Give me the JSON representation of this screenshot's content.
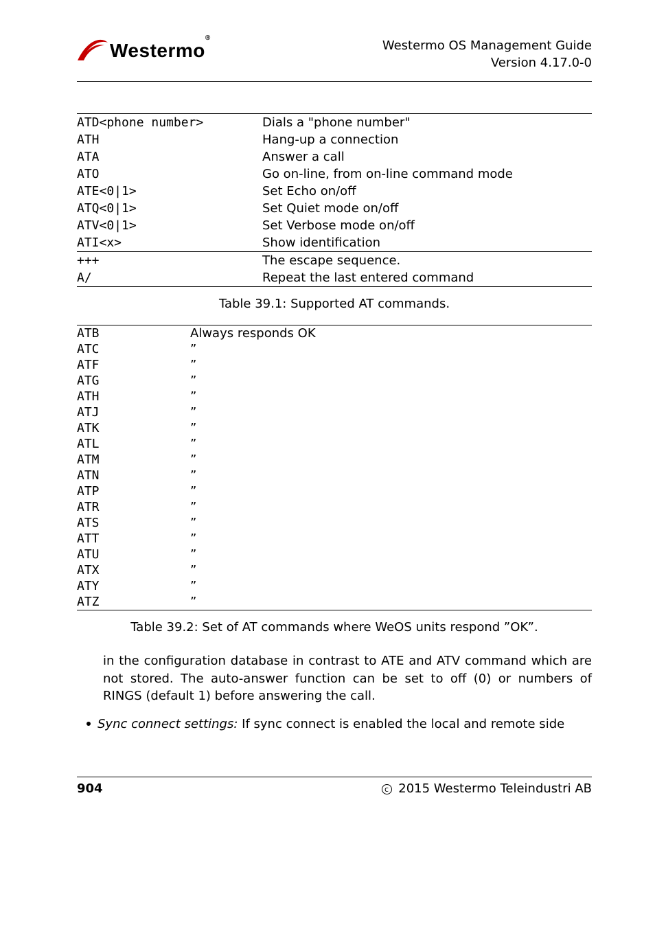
{
  "header": {
    "brand": "Westermo",
    "title_line1": "Westermo OS Management Guide",
    "title_line2": "Version 4.17.0-0"
  },
  "logo": {
    "swoosh_fill": "#c60000",
    "brand_color": "#000000"
  },
  "table1": {
    "rows": [
      {
        "cmd": "ATD<phone number>",
        "desc": "Dials a \"phone number\""
      },
      {
        "cmd": "ATH",
        "desc": "Hang-up a connection"
      },
      {
        "cmd": "ATA",
        "desc": "Answer a call"
      },
      {
        "cmd": "ATO",
        "desc": "Go on-line, from on-line command mode"
      },
      {
        "cmd": "ATE<0|1>",
        "desc": "Set Echo on/off"
      },
      {
        "cmd": "ATQ<0|1>",
        "desc": "Set Quiet mode on/off"
      },
      {
        "cmd": "ATV<0|1>",
        "desc": "Set Verbose mode on/off"
      },
      {
        "cmd": "ATI<x>",
        "desc": "Show identification"
      },
      {
        "cmd": "+++",
        "desc": "The escape sequence."
      },
      {
        "cmd": "A/",
        "desc": "Repeat the last entered command"
      }
    ],
    "caption": "Table 39.1: Supported AT commands."
  },
  "table2": {
    "rows": [
      {
        "cmd": "ATB",
        "desc": "Always responds OK"
      },
      {
        "cmd": "ATC",
        "desc": "”"
      },
      {
        "cmd": "ATF",
        "desc": "”"
      },
      {
        "cmd": "ATG",
        "desc": "”"
      },
      {
        "cmd": "ATH",
        "desc": "”"
      },
      {
        "cmd": "ATJ",
        "desc": "”"
      },
      {
        "cmd": "ATK",
        "desc": "”"
      },
      {
        "cmd": "ATL",
        "desc": "”"
      },
      {
        "cmd": "ATM",
        "desc": "”"
      },
      {
        "cmd": "ATN",
        "desc": "”"
      },
      {
        "cmd": "ATP",
        "desc": "”"
      },
      {
        "cmd": "ATR",
        "desc": "”"
      },
      {
        "cmd": "ATS",
        "desc": "”"
      },
      {
        "cmd": "ATT",
        "desc": "”"
      },
      {
        "cmd": "ATU",
        "desc": "”"
      },
      {
        "cmd": "ATX",
        "desc": "”"
      },
      {
        "cmd": "ATY",
        "desc": "”"
      },
      {
        "cmd": "ATZ",
        "desc": "”"
      }
    ],
    "caption": "Table 39.2: Set of AT commands where WeOS units respond ”OK”."
  },
  "paragraph": "in the configuration database in contrast to ATE and ATV command which are not stored. The auto-answer function can be set to off (0) or numbers of RINGS (default 1) before answering the call.",
  "bullet": {
    "lead": "Sync connect settings:",
    "rest": " If sync connect is enabled the local and remote side"
  },
  "footer": {
    "page": "904",
    "copyright": " 2015 Westermo Teleindustri AB",
    "c_symbol": "c"
  }
}
